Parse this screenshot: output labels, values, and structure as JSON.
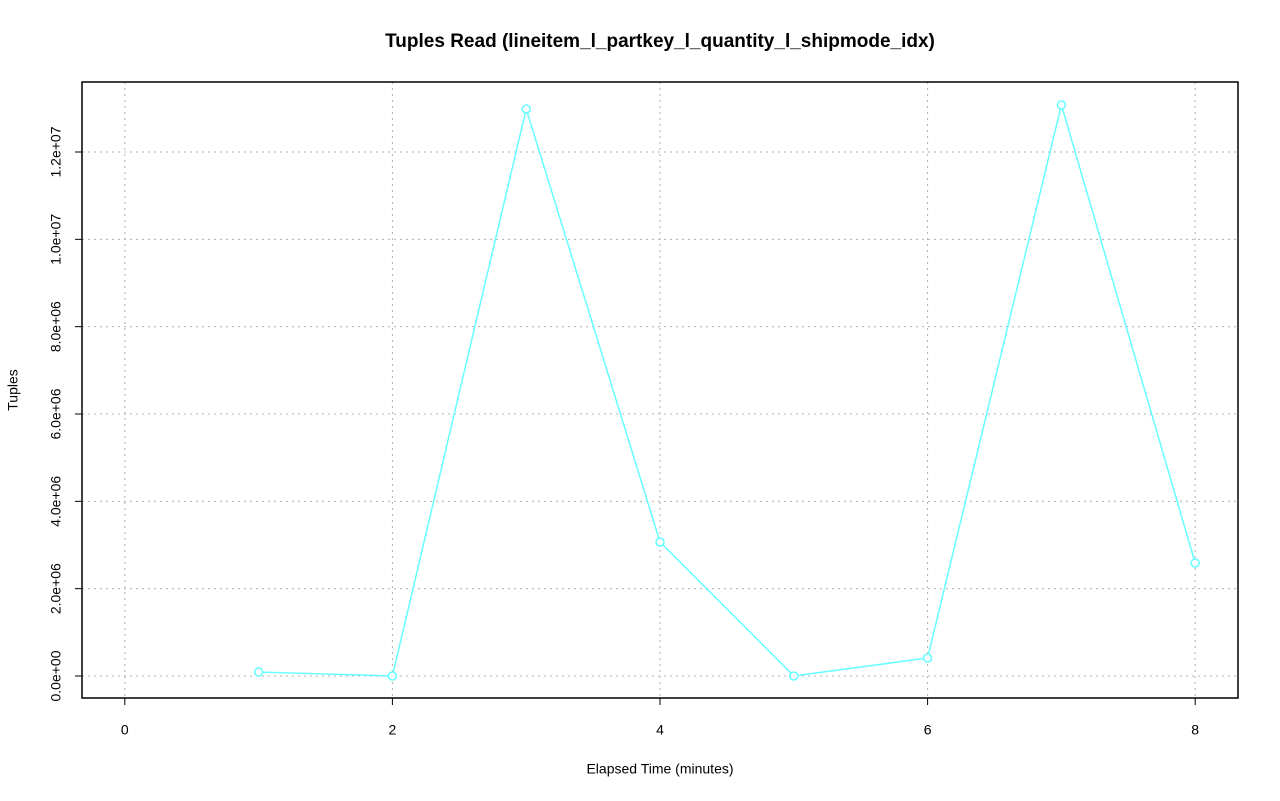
{
  "chart_data": {
    "type": "line",
    "title": "Tuples Read (lineitem_l_partkey_l_quantity_l_shipmode_idx)",
    "xlabel": "Elapsed Time (minutes)",
    "ylabel": "Tuples",
    "x": [
      1,
      2,
      3,
      4,
      5,
      6,
      7,
      8
    ],
    "values": [
      90000,
      0,
      12985000,
      3069000,
      0,
      412000,
      13077000,
      2588000
    ],
    "color": "#66ffff",
    "xlim": [
      -0.32,
      8.32
    ],
    "xticks": [
      0,
      2,
      4,
      6,
      8
    ],
    "ylim": [
      -504000,
      13603000
    ],
    "yticks": [
      {
        "value": 0,
        "label": "0.0e+00"
      },
      {
        "value": 2000000,
        "label": "2.0e+06"
      },
      {
        "value": 4000000,
        "label": "4.0e+06"
      },
      {
        "value": 6000000,
        "label": "6.0e+06"
      },
      {
        "value": 8000000,
        "label": "8.0e+06"
      },
      {
        "value": 10000000,
        "label": "1.0e+07"
      },
      {
        "value": 12000000,
        "label": "1.2e+07"
      }
    ],
    "grid": true
  }
}
